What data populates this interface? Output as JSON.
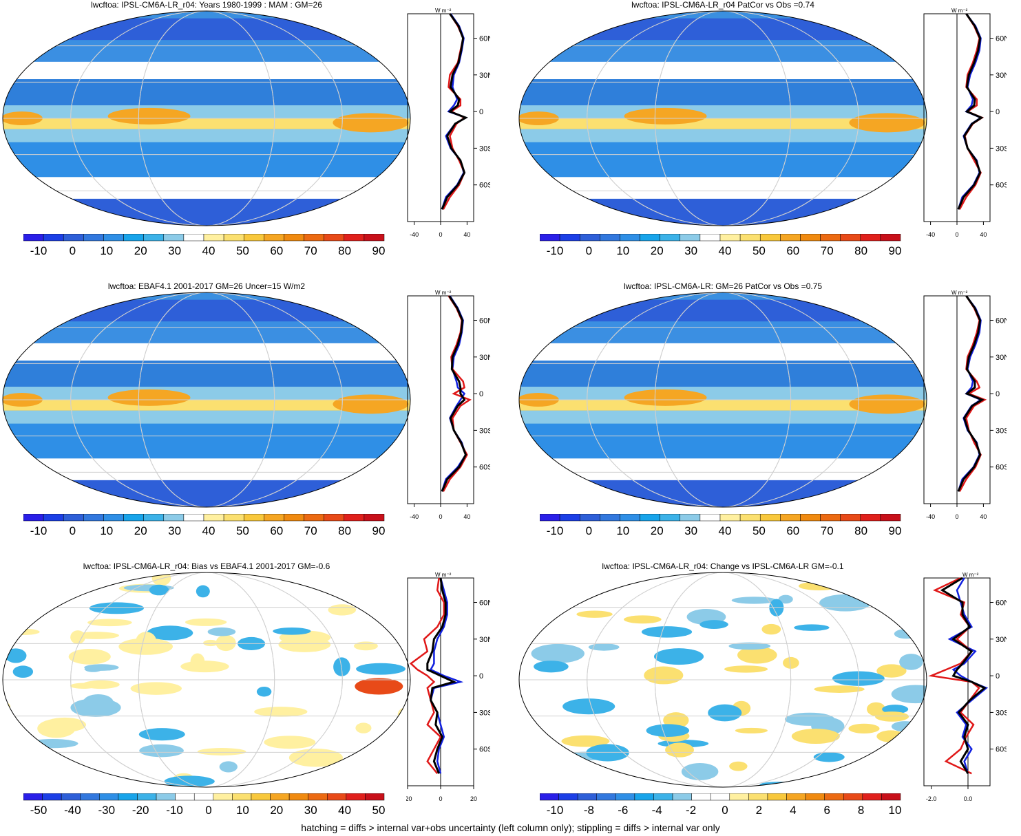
{
  "footer": "hatching = diffs > internal var+obs uncertainty (left column only); stippling = diffs > internal var only",
  "units_label": "W m⁻²",
  "latitude_ticks": [
    "60N",
    "30N",
    "0",
    "30S",
    "60S"
  ],
  "colors": {
    "mean_scale": [
      "#2a1fe8",
      "#1c3fe6",
      "#2e5fd8",
      "#3278de",
      "#2f8fe6",
      "#18a4ea",
      "#3cb2e8",
      "#8ccbe8",
      "#ffffff",
      "#fff0a0",
      "#fbe070",
      "#f8c83c",
      "#f5a623",
      "#f08a10",
      "#ec6a12",
      "#e84a18",
      "#e0201c",
      "#c8101a"
    ],
    "diff_scale": [
      "#2a1fe8",
      "#1c3fe6",
      "#2e5fd8",
      "#3278de",
      "#2f8fe6",
      "#18a4ea",
      "#3cb2e8",
      "#8ccbe8",
      "#ffffff",
      "#ffffff",
      "#fff0a0",
      "#fbe070",
      "#f8c83c",
      "#f5a623",
      "#f08a10",
      "#ec6a12",
      "#e84a18",
      "#e0201c",
      "#c8101a"
    ],
    "line_blue": "#1020e0",
    "line_red": "#e01818",
    "line_black": "#000000"
  },
  "chart_data": [
    {
      "type": "heatmap",
      "title": "lwcftoa: IPSL-CM6A-LR_r04: Years 1980-1999 : MAM : GM=26",
      "colorbar": {
        "tick_labels": [
          "-10",
          "0",
          "10",
          "20",
          "30",
          "40",
          "50",
          "60",
          "70",
          "80",
          "90"
        ],
        "range": [
          -15,
          95
        ]
      },
      "zonal_mean": {
        "xlim": [
          -50,
          50
        ],
        "x_tick_labels": [
          "-40",
          "0",
          "40"
        ],
        "series": [
          {
            "color": "blue",
            "lat": [
              -80,
              -70,
              -60,
              -50,
              -40,
              -30,
              -20,
              -10,
              -5,
              0,
              5,
              10,
              20,
              30,
              40,
              50,
              60,
              70,
              80
            ],
            "values": [
              2,
              8,
              25,
              35,
              30,
              15,
              8,
              22,
              38,
              12,
              20,
              25,
              18,
              20,
              28,
              32,
              35,
              28,
              15
            ]
          },
          {
            "color": "red",
            "lat": [
              -80,
              -70,
              -60,
              -50,
              -40,
              -30,
              -20,
              -10,
              -5,
              0,
              5,
              10,
              20,
              30,
              40,
              50,
              60,
              70,
              80
            ],
            "values": [
              4,
              14,
              28,
              36,
              28,
              18,
              14,
              24,
              36,
              16,
              30,
              30,
              12,
              14,
              26,
              30,
              34,
              26,
              14
            ]
          },
          {
            "color": "black",
            "lat": [
              -80,
              -70,
              -60,
              -50,
              -40,
              -30,
              -20,
              -10,
              -5,
              0,
              5,
              10,
              20,
              30,
              40,
              50,
              60,
              70,
              80
            ],
            "values": [
              2,
              10,
              26,
              36,
              30,
              16,
              10,
              22,
              38,
              14,
              26,
              28,
              15,
              18,
              27,
              31,
              34,
              27,
              14
            ]
          }
        ]
      }
    },
    {
      "type": "heatmap",
      "title": "lwcftoa: IPSL-CM6A-LR_r04 PatCor vs Obs =0.74",
      "colorbar": {
        "tick_labels": [
          "-10",
          "0",
          "10",
          "20",
          "30",
          "40",
          "50",
          "60",
          "70",
          "80",
          "90"
        ],
        "range": [
          -15,
          95
        ]
      },
      "zonal_mean": {
        "xlim": [
          -50,
          50
        ],
        "x_tick_labels": [
          "-40",
          "0",
          "40"
        ],
        "series": [
          {
            "color": "blue",
            "lat": [
              -80,
              -70,
              -60,
              -50,
              -40,
              -30,
              -20,
              -10,
              -5,
              0,
              5,
              10,
              20,
              30,
              40,
              50,
              60,
              70,
              80
            ],
            "values": [
              2,
              8,
              25,
              34,
              30,
              16,
              10,
              22,
              36,
              14,
              22,
              24,
              16,
              20,
              28,
              34,
              36,
              28,
              14
            ]
          },
          {
            "color": "red",
            "lat": [
              -80,
              -70,
              -60,
              -50,
              -40,
              -30,
              -20,
              -10,
              -5,
              0,
              5,
              10,
              20,
              30,
              40,
              50,
              60,
              70,
              80
            ],
            "values": [
              4,
              14,
              28,
              36,
              26,
              16,
              12,
              24,
              38,
              16,
              30,
              30,
              14,
              16,
              24,
              30,
              34,
              26,
              14
            ]
          },
          {
            "color": "black",
            "lat": [
              -80,
              -70,
              -60,
              -50,
              -40,
              -30,
              -20,
              -10,
              -5,
              0,
              5,
              10,
              20,
              30,
              40,
              50,
              60,
              70,
              80
            ],
            "values": [
              2,
              10,
              26,
              35,
              29,
              16,
              11,
              23,
              37,
              15,
              26,
              27,
              15,
              18,
              26,
              32,
              35,
              27,
              14
            ]
          }
        ]
      }
    },
    {
      "type": "heatmap",
      "title": "lwcftoa: EBAF4.1 2001-2017 GM=26 Uncer=15 W/m2",
      "colorbar": {
        "tick_labels": [
          "-10",
          "0",
          "10",
          "20",
          "30",
          "40",
          "50",
          "60",
          "70",
          "80",
          "90"
        ],
        "range": [
          -15,
          95
        ]
      },
      "zonal_mean": {
        "xlim": [
          -50,
          50
        ],
        "x_tick_labels": [
          "-40",
          "0",
          "40"
        ],
        "series": [
          {
            "color": "blue",
            "lat": [
              -80,
              -70,
              -60,
              -50,
              -40,
              -30,
              -20,
              -10,
              -5,
              0,
              5,
              10,
              20,
              30,
              40,
              50,
              60,
              70,
              80
            ],
            "values": [
              2,
              8,
              26,
              38,
              32,
              20,
              14,
              24,
              30,
              36,
              26,
              24,
              18,
              20,
              28,
              32,
              34,
              26,
              14
            ]
          },
          {
            "color": "red",
            "lat": [
              -80,
              -70,
              -60,
              -50,
              -40,
              -30,
              -20,
              -10,
              -5,
              0,
              5,
              10,
              20,
              30,
              40,
              50,
              60,
              70,
              80
            ],
            "values": [
              4,
              14,
              30,
              40,
              30,
              20,
              18,
              30,
              44,
              20,
              36,
              34,
              18,
              16,
              24,
              30,
              32,
              24,
              12
            ]
          },
          {
            "color": "black",
            "lat": [
              -80,
              -70,
              -60,
              -50,
              -40,
              -30,
              -20,
              -10,
              -5,
              0,
              5,
              10,
              20,
              30,
              40,
              50,
              60,
              70,
              80
            ],
            "values": [
              2,
              10,
              28,
              38,
              31,
              20,
              15,
              26,
              36,
              30,
              30,
              28,
              17,
              18,
              26,
              31,
              33,
              25,
              13
            ]
          }
        ]
      }
    },
    {
      "type": "heatmap",
      "title": "lwcftoa: IPSL-CM6A-LR: GM=26 PatCor vs Obs =0.75",
      "colorbar": {
        "tick_labels": [
          "-10",
          "0",
          "10",
          "20",
          "30",
          "40",
          "50",
          "60",
          "70",
          "80",
          "90"
        ],
        "range": [
          -15,
          95
        ]
      },
      "zonal_mean": {
        "xlim": [
          -50,
          50
        ],
        "x_tick_labels": [
          "-40",
          "0",
          "40"
        ],
        "series": [
          {
            "color": "blue",
            "lat": [
              -80,
              -70,
              -60,
              -50,
              -40,
              -30,
              -20,
              -10,
              -5,
              0,
              5,
              10,
              20,
              30,
              40,
              50,
              60,
              70,
              80
            ],
            "values": [
              2,
              8,
              25,
              34,
              30,
              16,
              10,
              22,
              36,
              14,
              22,
              24,
              16,
              20,
              28,
              34,
              36,
              28,
              14
            ]
          },
          {
            "color": "red",
            "lat": [
              -80,
              -70,
              -60,
              -50,
              -40,
              -30,
              -20,
              -10,
              -5,
              0,
              5,
              10,
              20,
              30,
              40,
              50,
              60,
              70,
              80
            ],
            "values": [
              4,
              14,
              28,
              36,
              26,
              18,
              14,
              26,
              42,
              18,
              34,
              30,
              14,
              16,
              24,
              30,
              34,
              26,
              14
            ]
          },
          {
            "color": "black",
            "lat": [
              -80,
              -70,
              -60,
              -50,
              -40,
              -30,
              -20,
              -10,
              -5,
              0,
              5,
              10,
              20,
              30,
              40,
              50,
              60,
              70,
              80
            ],
            "values": [
              2,
              10,
              26,
              35,
              29,
              17,
              11,
              23,
              38,
              15,
              27,
              27,
              15,
              18,
              26,
              32,
              35,
              27,
              14
            ]
          }
        ]
      }
    },
    {
      "type": "heatmap",
      "title": "lwcftoa: IPSL-CM6A-LR_r04: Bias vs EBAF4.1 2001-2017 GM=-0.6",
      "colorbar": {
        "tick_labels": [
          "-50",
          "-40",
          "-30",
          "-20",
          "-10",
          "0",
          "10",
          "20",
          "30",
          "40",
          "50"
        ],
        "range": [
          -55,
          55
        ]
      },
      "zonal_mean": {
        "xlim": [
          -20,
          20
        ],
        "x_tick_labels": [
          "-20",
          "0",
          "20"
        ],
        "series": [
          {
            "color": "blue",
            "lat": [
              -80,
              -70,
              -60,
              -50,
              -40,
              -30,
              -20,
              -10,
              -5,
              0,
              5,
              10,
              20,
              30,
              40,
              50,
              60,
              70,
              80
            ],
            "values": [
              0,
              -2,
              -1,
              2,
              0,
              -2,
              -6,
              -4,
              12,
              2,
              -6,
              -4,
              -4,
              -2,
              2,
              4,
              4,
              2,
              0
            ]
          },
          {
            "color": "red",
            "lat": [
              -80,
              -70,
              -60,
              -50,
              -40,
              -30,
              -20,
              -10,
              -5,
              0,
              5,
              10,
              20,
              30,
              40,
              50,
              60,
              70,
              80
            ],
            "values": [
              -2,
              -8,
              -4,
              0,
              -8,
              -4,
              -6,
              -8,
              -4,
              -8,
              -14,
              -18,
              -8,
              -10,
              -2,
              2,
              2,
              -2,
              -1
            ]
          },
          {
            "color": "black",
            "lat": [
              -80,
              -70,
              -60,
              -50,
              -40,
              -30,
              -20,
              -10,
              -5,
              0,
              5,
              10,
              20,
              30,
              40,
              50,
              60,
              70,
              80
            ],
            "values": [
              -1,
              -4,
              -2,
              1,
              -3,
              -2,
              -6,
              -5,
              8,
              0,
              -8,
              -8,
              -5,
              -4,
              1,
              3,
              3,
              1,
              0
            ]
          }
        ]
      }
    },
    {
      "type": "heatmap",
      "title": "lwcftoa: IPSL-CM6A-LR_r04: Change vs IPSL-CM6A-LR GM=-0.1",
      "colorbar": {
        "tick_labels": [
          "-10",
          "-8",
          "-6",
          "-4",
          "-2",
          "0",
          "2",
          "4",
          "6",
          "8",
          "10"
        ],
        "range": [
          -11,
          11
        ]
      },
      "zonal_mean": {
        "xlim": [
          -2.4,
          1.2
        ],
        "x_tick_labels": [
          "-2.0",
          "0.0"
        ],
        "series": [
          {
            "color": "blue",
            "lat": [
              -80,
              -70,
              -60,
              -50,
              -40,
              -30,
              -20,
              -10,
              -5,
              0,
              5,
              10,
              20,
              30,
              40,
              50,
              60,
              70,
              80
            ],
            "values": [
              0,
              -0.2,
              0.2,
              -0.3,
              -0.1,
              -0.6,
              0.2,
              1.0,
              0.2,
              -0.4,
              -0.8,
              -0.2,
              0.4,
              -1.0,
              0.2,
              -0.2,
              -0.4,
              -0.6,
              -0.2
            ]
          },
          {
            "color": "red",
            "lat": [
              -80,
              -70,
              -60,
              -50,
              -40,
              -30,
              -20,
              -10,
              -5,
              0,
              5,
              10,
              20,
              30,
              40,
              50,
              60,
              70,
              80
            ],
            "values": [
              0.2,
              -1.2,
              -0.4,
              -0.1,
              0.3,
              -0.4,
              0.1,
              0.6,
              0.2,
              -2.0,
              -1.2,
              -0.4,
              0.2,
              -0.6,
              0.1,
              -0.4,
              -0.2,
              -1.8,
              -0.4
            ]
          },
          {
            "color": "black",
            "lat": [
              -80,
              -70,
              -60,
              -50,
              -40,
              -30,
              -20,
              -10,
              -5,
              0,
              5,
              10,
              20,
              30,
              40,
              50,
              60,
              70,
              80
            ],
            "values": [
              0,
              -0.4,
              0,
              -0.2,
              0,
              -0.5,
              0.1,
              0.9,
              0.2,
              -0.8,
              -0.6,
              -0.3,
              0.2,
              -0.8,
              0.1,
              -0.3,
              -0.3,
              -1.4,
              -0.3
            ]
          }
        ]
      }
    }
  ]
}
